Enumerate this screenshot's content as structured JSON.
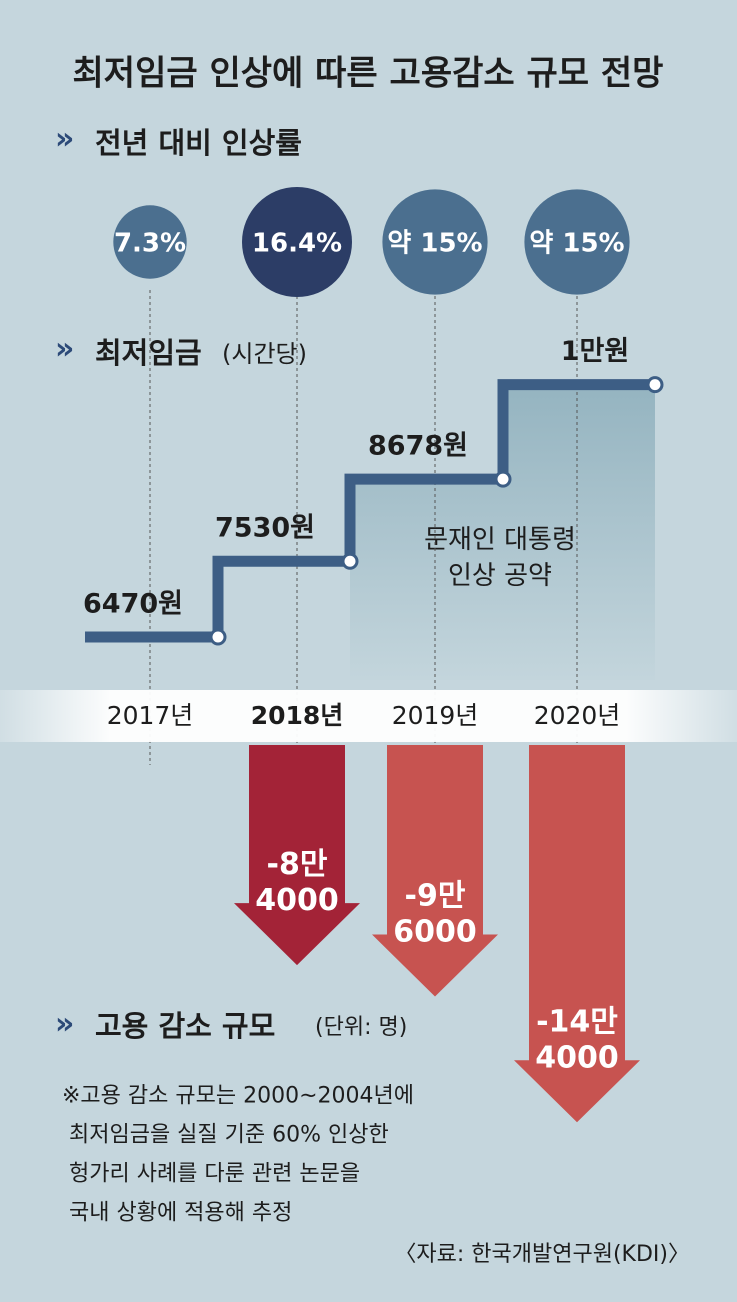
{
  "chart_data": {
    "type": "infographic",
    "title": "최저임금 인상에 따른 고용감소 규모 전망",
    "categories": [
      "2017년",
      "2018년",
      "2019년",
      "2020년"
    ],
    "highlight_index": 1,
    "rate": {
      "title": "전년 대비 인상률",
      "values": [
        7.3,
        16.4,
        15,
        15
      ],
      "value_labels": [
        "7.3%",
        "16.4%",
        "약 15%",
        "약 15%"
      ]
    },
    "wage": {
      "title": "최저임금",
      "title_note": "(시간당)",
      "values": [
        6470,
        7530,
        8678,
        10000
      ],
      "value_labels": [
        "6470원",
        "7530원",
        "8678원",
        "1만원"
      ]
    },
    "pledge": "문재인 대통령\n인상 공약",
    "jobs": {
      "title": "고용 감소 규모",
      "unit": "(단위: 명)",
      "values": [
        null,
        -84000,
        -96000,
        -144000
      ],
      "value_labels": [
        null,
        "-8만\n4000",
        "-9만\n6000",
        "-14만\n4000"
      ]
    },
    "note": "※고용 감소 규모는 2000~2004년에\n  최저임금을 실질 기준 60% 인상한\n  헝가리 사례를 다룬 관련 논문을\n  국내 상황에 적용해 추정",
    "source": "〈자료: 한국개발연구원(KDI)〉"
  }
}
